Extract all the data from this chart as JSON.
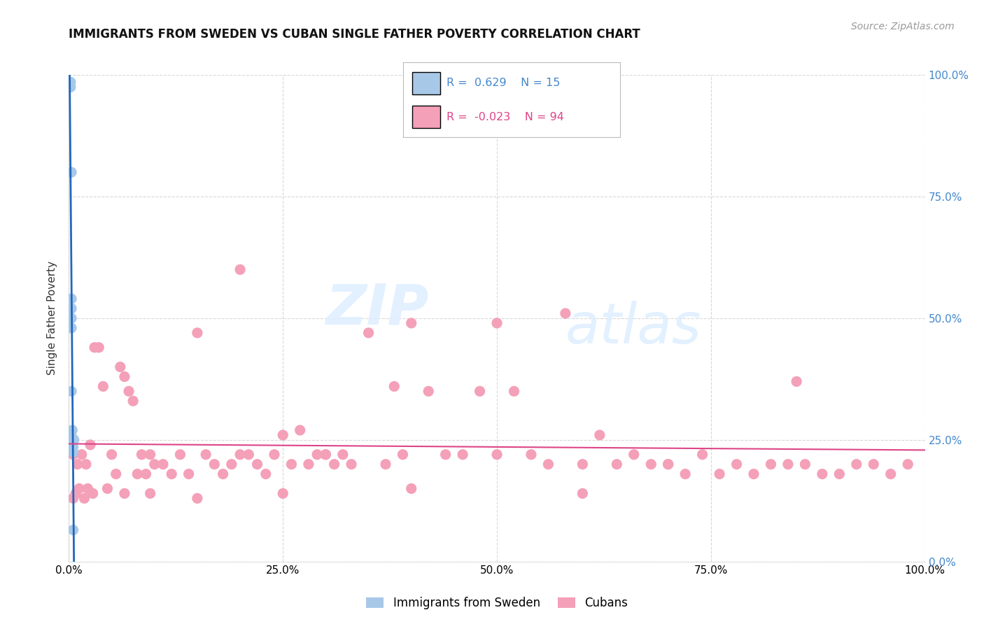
{
  "title": "IMMIGRANTS FROM SWEDEN VS CUBAN SINGLE FATHER POVERTY CORRELATION CHART",
  "source_text": "Source: ZipAtlas.com",
  "ylabel": "Single Father Poverty",
  "watermark_zip": "ZIP",
  "watermark_atlas": "atlas",
  "legend_blue_label": "Immigrants from Sweden",
  "legend_pink_label": "Cubans",
  "blue_R": 0.629,
  "blue_N": 15,
  "pink_R": -0.023,
  "pink_N": 94,
  "blue_color": "#a8c8e8",
  "pink_color": "#f4a0b8",
  "blue_trend_color": "#2266bb",
  "pink_trend_color": "#dd4488",
  "blue_legend_color": "#a8c8e8",
  "pink_legend_color": "#f4a0b8",
  "right_tick_color": "#4488cc",
  "xlim": [
    0.0,
    1.0
  ],
  "ylim": [
    0.0,
    1.0
  ],
  "x_ticks": [
    0.0,
    0.25,
    0.5,
    0.75,
    1.0
  ],
  "x_tick_labels": [
    "0.0%",
    "25.0%",
    "50.0%",
    "75.0%",
    "100.0%"
  ],
  "y_ticks": [
    0.0,
    0.25,
    0.5,
    0.75,
    1.0
  ],
  "y_tick_labels_right": [
    "0.0%",
    "25.0%",
    "50.0%",
    "75.0%",
    "100.0%"
  ],
  "blue_points_x": [
    0.002,
    0.002,
    0.003,
    0.003,
    0.003,
    0.003,
    0.003,
    0.003,
    0.004,
    0.004,
    0.004,
    0.005,
    0.005,
    0.006,
    0.005
  ],
  "blue_points_y": [
    0.985,
    0.975,
    0.8,
    0.54,
    0.52,
    0.5,
    0.48,
    0.35,
    0.27,
    0.255,
    0.245,
    0.235,
    0.225,
    0.25,
    0.065
  ],
  "pink_points_x": [
    0.005,
    0.01,
    0.015,
    0.02,
    0.025,
    0.03,
    0.035,
    0.04,
    0.05,
    0.055,
    0.06,
    0.065,
    0.07,
    0.075,
    0.08,
    0.085,
    0.09,
    0.095,
    0.1,
    0.11,
    0.12,
    0.13,
    0.14,
    0.15,
    0.16,
    0.17,
    0.18,
    0.19,
    0.2,
    0.21,
    0.22,
    0.23,
    0.24,
    0.25,
    0.26,
    0.27,
    0.28,
    0.29,
    0.3,
    0.31,
    0.32,
    0.33,
    0.35,
    0.37,
    0.38,
    0.39,
    0.4,
    0.42,
    0.44,
    0.46,
    0.48,
    0.5,
    0.52,
    0.54,
    0.56,
    0.58,
    0.6,
    0.62,
    0.64,
    0.66,
    0.68,
    0.7,
    0.72,
    0.74,
    0.76,
    0.78,
    0.8,
    0.82,
    0.84,
    0.86,
    0.88,
    0.9,
    0.92,
    0.94,
    0.96,
    0.98,
    0.005,
    0.008,
    0.012,
    0.018,
    0.022,
    0.028,
    0.045,
    0.065,
    0.095,
    0.15,
    0.25,
    0.4,
    0.6,
    0.85,
    0.3,
    0.5,
    0.7,
    0.2
  ],
  "pink_points_y": [
    0.22,
    0.2,
    0.22,
    0.2,
    0.24,
    0.44,
    0.44,
    0.36,
    0.22,
    0.18,
    0.4,
    0.38,
    0.35,
    0.33,
    0.18,
    0.22,
    0.18,
    0.22,
    0.2,
    0.2,
    0.18,
    0.22,
    0.18,
    0.47,
    0.22,
    0.2,
    0.18,
    0.2,
    0.22,
    0.22,
    0.2,
    0.18,
    0.22,
    0.26,
    0.2,
    0.27,
    0.2,
    0.22,
    0.22,
    0.2,
    0.22,
    0.2,
    0.47,
    0.2,
    0.36,
    0.22,
    0.49,
    0.35,
    0.22,
    0.22,
    0.35,
    0.49,
    0.35,
    0.22,
    0.2,
    0.51,
    0.2,
    0.26,
    0.2,
    0.22,
    0.2,
    0.2,
    0.18,
    0.22,
    0.18,
    0.2,
    0.18,
    0.2,
    0.2,
    0.2,
    0.18,
    0.18,
    0.2,
    0.2,
    0.18,
    0.2,
    0.13,
    0.14,
    0.15,
    0.13,
    0.15,
    0.14,
    0.15,
    0.14,
    0.14,
    0.13,
    0.14,
    0.15,
    0.14,
    0.37,
    0.22,
    0.22,
    0.2,
    0.6
  ]
}
